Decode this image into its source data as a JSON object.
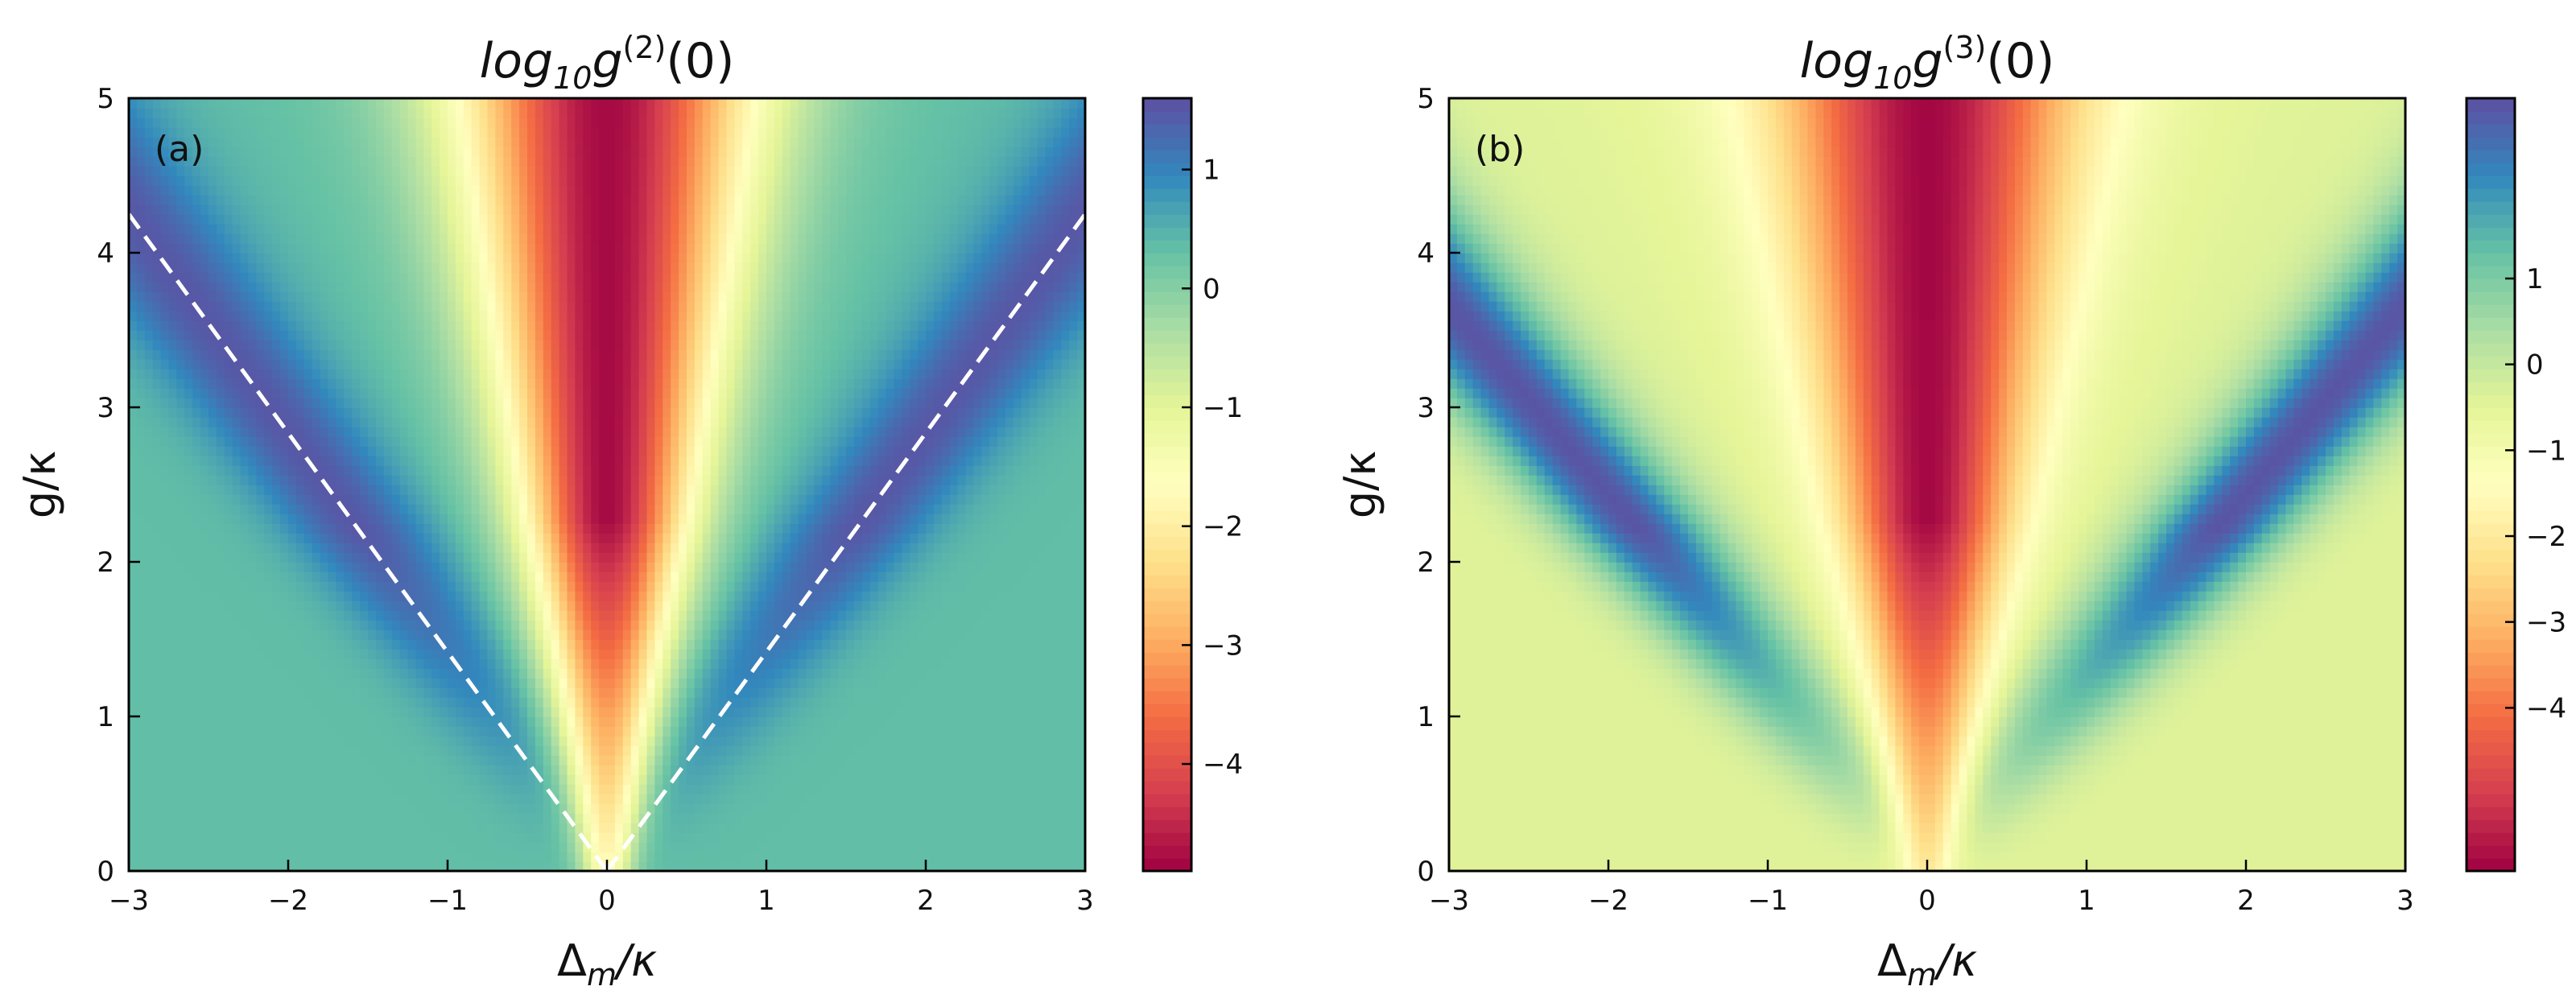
{
  "chart_data": [
    {
      "type": "heatmap",
      "panel_label": "(a)",
      "title_base": "log",
      "title_sub": "10",
      "title_g": "g",
      "title_sup": "(2)",
      "title_arg": "(0)",
      "xlabel_main": "Δ",
      "xlabel_sub": "m",
      "xlabel_rest": "/κ",
      "ylabel": "g/κ",
      "xlim": [
        -3,
        3
      ],
      "ylim": [
        0,
        5
      ],
      "xticks": [
        "−3",
        "−2",
        "−1",
        "0",
        "1",
        "2",
        "3"
      ],
      "xtick_values": [
        -3,
        -2,
        -1,
        0,
        1,
        2,
        3
      ],
      "yticks": [
        "0",
        "1",
        "2",
        "3",
        "4",
        "5"
      ],
      "ytick_values": [
        0,
        1,
        2,
        3,
        4,
        5
      ],
      "colorbar": {
        "vmin": -4.9,
        "vmax": 1.6,
        "ticks": [
          "1",
          "0",
          "−1",
          "−2",
          "−3",
          "−4"
        ],
        "tick_values": [
          1,
          0,
          -1,
          -2,
          -3,
          -4
        ]
      },
      "field": {
        "center_min": -4.8,
        "blue_ridge_max": 1.5,
        "background": 0.35,
        "ridge_slope": 1.42
      },
      "overlay_lines": [
        {
          "style": "dashed",
          "color": "#ffffff",
          "points": [
            [
              -3,
              4.25
            ],
            [
              0,
              0
            ]
          ]
        },
        {
          "style": "dashed",
          "color": "#ffffff",
          "points": [
            [
              0,
              0
            ],
            [
              3,
              4.25
            ]
          ]
        }
      ]
    },
    {
      "type": "heatmap",
      "panel_label": "(b)",
      "title_base": "log",
      "title_sub": "10",
      "title_g": "g",
      "title_sup": "(3)",
      "title_arg": "(0)",
      "xlabel_main": "Δ",
      "xlabel_sub": "m",
      "xlabel_rest": "/κ",
      "ylabel": "g/κ",
      "xlim": [
        -3,
        3
      ],
      "ylim": [
        0,
        5
      ],
      "xticks": [
        "−3",
        "−2",
        "−1",
        "0",
        "1",
        "2",
        "3"
      ],
      "xtick_values": [
        -3,
        -2,
        -1,
        0,
        1,
        2,
        3
      ],
      "yticks": [
        "0",
        "1",
        "2",
        "3",
        "4",
        "5"
      ],
      "ytick_values": [
        0,
        1,
        2,
        3,
        4,
        5
      ],
      "colorbar": {
        "vmin": -5.9,
        "vmax": 3.1,
        "ticks": [
          "1",
          "0",
          "−1",
          "−2",
          "−3",
          "−4"
        ],
        "tick_values": [
          1,
          0,
          -1,
          -2,
          -3,
          -4
        ]
      },
      "field": {
        "center_min": -5.8,
        "blue_ridge_max": 3.0,
        "background": -0.4,
        "ridge_slope": 1.22
      },
      "overlay_lines": []
    }
  ]
}
